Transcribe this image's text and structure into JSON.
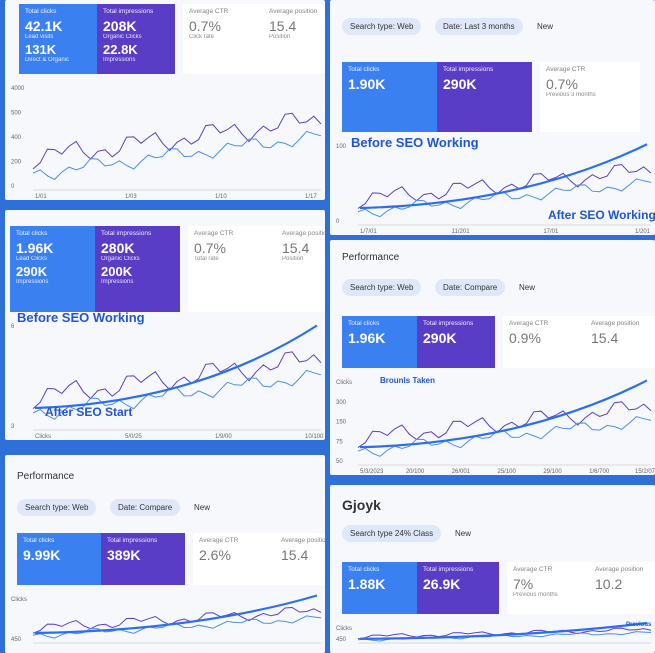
{
  "panels": [
    {
      "cards": [
        {
          "label": "Total clicks",
          "lines": [
            "42.1K",
            "Lead visits",
            "131K",
            "Direct & Organic"
          ]
        },
        {
          "label": "Total impressions",
          "lines": [
            "208K",
            "Organic Clicks",
            "22.8K",
            "Impressions"
          ]
        },
        {
          "label": "Average CTR",
          "lines": [
            "0.7%",
            "Click rate"
          ]
        },
        {
          "label": "Average position",
          "lines": [
            "15.4",
            "Position"
          ]
        }
      ],
      "y_labels": [
        "4000",
        "500",
        "400",
        "200",
        "0"
      ],
      "x_labels": [
        "1/01",
        "1/03",
        "1/10",
        "1/17"
      ]
    },
    {
      "filters": [
        "Search type: Web",
        "Date: Last 3 months",
        "New"
      ],
      "cards": [
        {
          "label": "Total clicks",
          "lines": [
            "1.90K"
          ]
        },
        {
          "label": "Total impressions",
          "lines": [
            "290K"
          ]
        },
        {
          "label": "Average CTR",
          "lines": [
            "0.7%",
            "Previous 3 months"
          ]
        }
      ],
      "annotations": [
        "Before SEO Working",
        "After SEO Working"
      ],
      "y_labels": [
        "100",
        "0"
      ],
      "x_labels": [
        "1/7/01",
        "11/201",
        "17/01",
        "1/201"
      ]
    },
    {
      "cards": [
        {
          "label": "Total clicks",
          "lines": [
            "1.96K",
            "Lead Clicks",
            "290K",
            "Impressions"
          ]
        },
        {
          "label": "Total impressions",
          "lines": [
            "280K",
            "Organic Clicks",
            "200K",
            "Impressions"
          ]
        },
        {
          "label": "Average CTR",
          "lines": [
            "0.7%",
            "Total rate"
          ]
        },
        {
          "label": "Average position",
          "lines": [
            "15.4",
            "Position"
          ]
        }
      ],
      "annotations": [
        "Before SEO Working",
        "After SEO Start"
      ],
      "y_labels": [
        "6",
        "3"
      ],
      "x_labels": [
        "Clicks",
        "5/0/25",
        "1/9/00",
        "10/100"
      ]
    },
    {
      "title": "Performance",
      "filters": [
        "Search type: Web",
        "Date: Compare",
        "New"
      ],
      "cards": [
        {
          "label": "Total clicks",
          "lines": [
            "1.96K"
          ]
        },
        {
          "label": "Total impressions",
          "lines": [
            "290K"
          ]
        },
        {
          "label": "Average CTR",
          "lines": [
            "0.9%"
          ]
        },
        {
          "label": "Average position",
          "lines": [
            "15.4"
          ]
        }
      ],
      "annotations": [
        "Brounls Taken"
      ],
      "y_labels": [
        "Clicks",
        "300",
        "150",
        "75",
        "50"
      ],
      "x_labels": [
        "5/3/2023",
        "20/100",
        "26/001",
        "25/100",
        "29/100",
        "1/6/700",
        "15/2/07"
      ]
    },
    {
      "title": "Performance",
      "filters": [
        "Search type: Web",
        "Date: Compare",
        "New"
      ],
      "cards": [
        {
          "label": "Total clicks",
          "lines": [
            "9.99K"
          ]
        },
        {
          "label": "Total impressions",
          "lines": [
            "389K"
          ]
        },
        {
          "label": "Average CTR",
          "lines": [
            "2.6%"
          ]
        },
        {
          "label": "Average position",
          "lines": [
            "15.4"
          ]
        }
      ],
      "y_labels": [
        "Clicks",
        "450"
      ],
      "x_labels": []
    },
    {
      "title": "Gjoyk",
      "filters": [
        "Search type 24% Class",
        "New"
      ],
      "cards": [
        {
          "label": "Total clicks",
          "lines": [
            "1.88K"
          ]
        },
        {
          "label": "Total impressions",
          "lines": [
            "26.9K"
          ]
        },
        {
          "label": "Average CTR",
          "lines": [
            "7%",
            "Previous months"
          ]
        },
        {
          "label": "Average position",
          "lines": [
            "10.2"
          ]
        }
      ],
      "annotations": [
        "Previous"
      ],
      "y_labels": [
        "Clicks",
        "450"
      ],
      "x_labels": []
    }
  ]
}
